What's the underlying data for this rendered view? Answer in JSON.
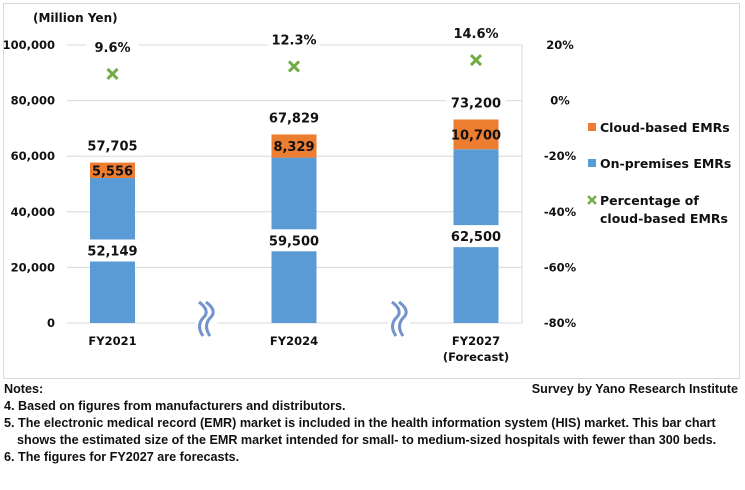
{
  "chart_data": {
    "type": "bar",
    "stacked": true,
    "unit_label": "(Million Yen)",
    "categories": [
      "FY2021",
      "FY2024",
      "FY2027\n(Forecast)"
    ],
    "category_lines": [
      [
        "FY2021"
      ],
      [
        "FY2024"
      ],
      [
        "FY2027",
        "(Forecast)"
      ]
    ],
    "series": [
      {
        "name": "On-premises EMRs",
        "values": [
          52149,
          59500,
          62500
        ],
        "labels": [
          "52,149",
          "59,500",
          "62,500"
        ],
        "color": "#5B9BD5",
        "axis": "left"
      },
      {
        "name": "Cloud-based EMRs",
        "values": [
          5556,
          8329,
          10700
        ],
        "labels": [
          "5,556",
          "8,329",
          "10,700"
        ],
        "color": "#ED7D31",
        "axis": "left"
      },
      {
        "name": "Percentage of cloud-based EMRs",
        "type": "marker",
        "marker": "x",
        "values": [
          9.6,
          12.3,
          14.6
        ],
        "labels": [
          "9.6%",
          "12.3%",
          "14.6%"
        ],
        "color": "#70AD47",
        "axis": "right"
      }
    ],
    "totals": [
      57705,
      67829,
      73200
    ],
    "total_labels": [
      "57,705",
      "67,829",
      "73,200"
    ],
    "y_left": {
      "range": [
        0,
        100000
      ],
      "ticks": [
        "0",
        "20,000",
        "40,000",
        "60,000",
        "80,000",
        "100,000"
      ]
    },
    "y_right": {
      "range": [
        -80,
        20
      ],
      "ticks": [
        "-80%",
        "-60%",
        "-40%",
        "-20%",
        "0%",
        "20%"
      ]
    },
    "grid": true,
    "axis_break_symbols": 2,
    "legend": {
      "placement": "right",
      "items": [
        {
          "label": "Cloud-based EMRs",
          "color": "#ED7D31",
          "shape": "square"
        },
        {
          "label": "On-premises EMRs",
          "color": "#5B9BD5",
          "shape": "square"
        },
        {
          "label_lines": [
            "Percentage of",
            "cloud-based EMRs"
          ],
          "color": "#70AD47",
          "shape": "x"
        }
      ]
    }
  },
  "notes": {
    "heading": "Notes:",
    "source": "Survey by Yano Research Institute",
    "items": [
      "4. Based on figures from manufacturers and distributors.",
      "5. The electronic medical record (EMR) market is included in the health information system (HIS) market. This bar chart shows the estimated size of the EMR market intended for small- to medium-sized hospitals with fewer than 300 beds.",
      "6. The figures for FY2027 are forecasts."
    ]
  }
}
